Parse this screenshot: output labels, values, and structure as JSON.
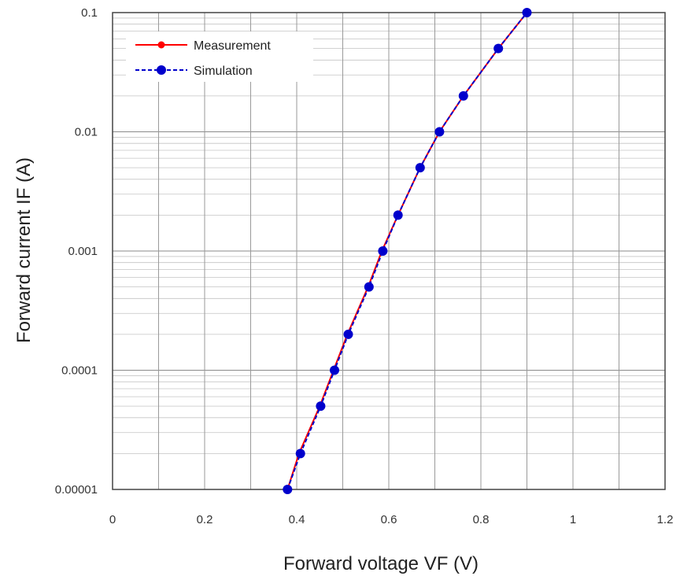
{
  "chart_data": {
    "type": "line",
    "xlabel": "Forward voltage VF (V)",
    "ylabel": "Forward current IF (A)",
    "xlim": [
      0,
      1.2
    ],
    "ylim": [
      1e-05,
      0.1
    ],
    "y_scale": "log",
    "grid": true,
    "legend_position": "top-left",
    "x_ticks": [
      0,
      0.2,
      0.4,
      0.6,
      0.8,
      1,
      1.2
    ],
    "x_tick_labels": [
      "0",
      "0.2",
      "0.4",
      "0.6",
      "0.8",
      "1",
      "1.2"
    ],
    "y_ticks": [
      1e-05,
      0.0001,
      0.001,
      0.01,
      0.1
    ],
    "y_tick_labels": [
      "0.00001",
      "0.0001",
      "0.001",
      "0.01",
      "0.1"
    ],
    "series": [
      {
        "name": "Measurement",
        "color": "#ff0000",
        "line_style": "solid",
        "x": [
          0.38,
          0.405,
          0.45,
          0.48,
          0.51,
          0.555,
          0.585,
          0.62,
          0.668,
          0.71,
          0.762,
          0.838,
          0.9
        ],
        "y": [
          1e-05,
          2e-05,
          5e-05,
          0.0001,
          0.0002,
          0.0005,
          0.001,
          0.002,
          0.005,
          0.01,
          0.02,
          0.05,
          0.1
        ]
      },
      {
        "name": "Simulation",
        "color": "#0000cc",
        "line_style": "dashed",
        "x": [
          0.38,
          0.408,
          0.452,
          0.482,
          0.512,
          0.557,
          0.587,
          0.62,
          0.668,
          0.71,
          0.762,
          0.838,
          0.9
        ],
        "y": [
          1e-05,
          2e-05,
          5e-05,
          0.0001,
          0.0002,
          0.0005,
          0.001,
          0.002,
          0.005,
          0.01,
          0.02,
          0.05,
          0.1
        ]
      }
    ]
  }
}
